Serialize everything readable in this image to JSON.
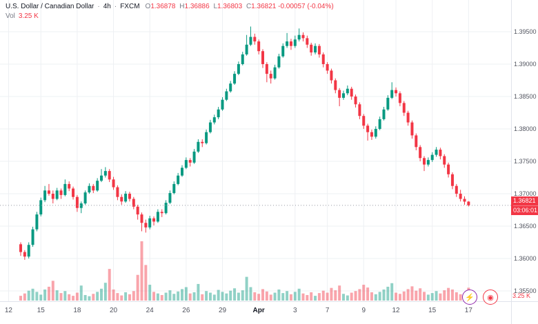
{
  "legend": {
    "symbol": "U.S. Dollar / Canadian Dollar",
    "separator": "·",
    "interval": "4h",
    "exchange": "FXCM",
    "ohlc": {
      "o_label": "O",
      "o": "1.36878",
      "h_label": "H",
      "h": "1.36886",
      "l_label": "L",
      "l": "1.36803",
      "c_label": "C",
      "c": "1.36821",
      "change": "-0.00057 (-0.04%)"
    },
    "volume_label": "Vol",
    "volume_value": "3.25 K"
  },
  "price_axis": {
    "last_price_label": "1.36821",
    "countdown": "03:06:01",
    "volume_axis_label": "3.25 K",
    "ticks": [
      {
        "label": "1.39500",
        "value": 1.395
      },
      {
        "label": "1.39000",
        "value": 1.39
      },
      {
        "label": "1.38500",
        "value": 1.385
      },
      {
        "label": "1.38000",
        "value": 1.38
      },
      {
        "label": "1.37500",
        "value": 1.375
      },
      {
        "label": "1.37000",
        "value": 1.37
      },
      {
        "label": "1.36500",
        "value": 1.365
      },
      {
        "label": "1.36000",
        "value": 1.36
      },
      {
        "label": "1.35500",
        "value": 1.355
      }
    ]
  },
  "time_axis": {
    "ticks": [
      {
        "label": "12",
        "i": -3
      },
      {
        "label": "15",
        "i": 5
      },
      {
        "label": "18",
        "i": 14
      },
      {
        "label": "20",
        "i": 23
      },
      {
        "label": "24",
        "i": 32
      },
      {
        "label": "26",
        "i": 41
      },
      {
        "label": "29",
        "i": 50
      },
      {
        "label": "Apr",
        "i": 59,
        "major": true
      },
      {
        "label": "3",
        "i": 68
      },
      {
        "label": "7",
        "i": 76
      },
      {
        "label": "9",
        "i": 85
      },
      {
        "label": "12",
        "i": 93
      },
      {
        "label": "15",
        "i": 102
      },
      {
        "label": "17",
        "i": 111
      }
    ]
  },
  "buttons": {
    "lightning_glyph": "⚡",
    "record_glyph": "◉"
  },
  "chart_data": {
    "type": "candlestick",
    "title": "U.S. Dollar / Canadian Dollar · 4h · FXCM",
    "symbol": "USD/CAD",
    "interval": "4h",
    "exchange": "FXCM",
    "up_color": "#089981",
    "down_color": "#f23645",
    "volume_up_color": "rgba(8,153,129,0.45)",
    "volume_down_color": "rgba(242,54,69,0.45)",
    "grid": true,
    "legend_position": "top-left",
    "price_range": [
      1.355,
      1.3975
    ],
    "volume_unit": "K",
    "current": {
      "open": 1.36878,
      "high": 1.36886,
      "low": 1.36803,
      "close": 1.36821,
      "change": -0.00057,
      "change_pct": -0.04,
      "volume_k": 3.25,
      "countdown": "03:06:01"
    },
    "candles": [
      [
        1.3622,
        1.3625,
        1.3604,
        1.361,
        1.2
      ],
      [
        1.361,
        1.3613,
        1.3598,
        1.3603,
        1.8
      ],
      [
        1.3603,
        1.3625,
        1.36,
        1.3621,
        2.5
      ],
      [
        1.3621,
        1.3649,
        1.3618,
        1.3645,
        3.0
      ],
      [
        1.3645,
        1.3672,
        1.3642,
        1.3668,
        2.2
      ],
      [
        1.3668,
        1.3694,
        1.3665,
        1.369,
        1.5
      ],
      [
        1.369,
        1.3712,
        1.3687,
        1.3705,
        2.8
      ],
      [
        1.3705,
        1.3715,
        1.3697,
        1.37,
        3.5
      ],
      [
        1.37,
        1.3705,
        1.3685,
        1.3692,
        5.0
      ],
      [
        1.3692,
        1.3709,
        1.369,
        1.3705,
        2.6
      ],
      [
        1.3705,
        1.3708,
        1.3692,
        1.3698,
        1.9
      ],
      [
        1.3698,
        1.3722,
        1.3696,
        1.3715,
        2.4
      ],
      [
        1.3715,
        1.3719,
        1.3704,
        1.3708,
        1.6
      ],
      [
        1.3708,
        1.3711,
        1.3691,
        1.3695,
        1.2
      ],
      [
        1.3695,
        1.3698,
        1.3672,
        1.3678,
        2.0
      ],
      [
        1.3678,
        1.3688,
        1.367,
        1.3685,
        3.8
      ],
      [
        1.3685,
        1.3705,
        1.3683,
        1.3702,
        1.4
      ],
      [
        1.3702,
        1.3716,
        1.37,
        1.3712,
        1.1
      ],
      [
        1.3712,
        1.3715,
        1.3701,
        1.3705,
        1.7
      ],
      [
        1.3705,
        1.3724,
        1.3703,
        1.372,
        2.2
      ],
      [
        1.372,
        1.3738,
        1.3718,
        1.3728,
        3.0
      ],
      [
        1.3728,
        1.3741,
        1.3725,
        1.3735,
        4.5
      ],
      [
        1.3735,
        1.3738,
        1.3718,
        1.3722,
        8.0
      ],
      [
        1.3722,
        1.3726,
        1.3706,
        1.371,
        2.8
      ],
      [
        1.371,
        1.3713,
        1.369,
        1.3695,
        1.9
      ],
      [
        1.3695,
        1.3699,
        1.3683,
        1.3688,
        1.3
      ],
      [
        1.3688,
        1.3704,
        1.3686,
        1.37,
        2.1
      ],
      [
        1.37,
        1.3703,
        1.3688,
        1.3692,
        1.6
      ],
      [
        1.3692,
        1.3695,
        1.3676,
        1.368,
        2.4
      ],
      [
        1.368,
        1.3683,
        1.366,
        1.3668,
        6.5
      ],
      [
        1.3668,
        1.3671,
        1.3642,
        1.3655,
        15.0
      ],
      [
        1.3655,
        1.366,
        1.364,
        1.3648,
        9.0
      ],
      [
        1.3648,
        1.3666,
        1.3645,
        1.3662,
        4.0
      ],
      [
        1.3662,
        1.3665,
        1.3651,
        1.3657,
        2.2
      ],
      [
        1.3657,
        1.3676,
        1.3655,
        1.3672,
        1.8
      ],
      [
        1.3672,
        1.3676,
        1.3664,
        1.367,
        1.4
      ],
      [
        1.367,
        1.369,
        1.3668,
        1.3686,
        2.0
      ],
      [
        1.3686,
        1.3705,
        1.3684,
        1.3701,
        2.6
      ],
      [
        1.3701,
        1.3719,
        1.3699,
        1.3715,
        1.7
      ],
      [
        1.3715,
        1.3732,
        1.3713,
        1.3728,
        2.3
      ],
      [
        1.3728,
        1.3744,
        1.3726,
        1.374,
        2.9
      ],
      [
        1.374,
        1.3756,
        1.3738,
        1.3752,
        3.4
      ],
      [
        1.3752,
        1.3755,
        1.3742,
        1.3748,
        1.8
      ],
      [
        1.3748,
        1.3769,
        1.3746,
        1.3765,
        2.1
      ],
      [
        1.3765,
        1.3784,
        1.3763,
        1.378,
        4.2
      ],
      [
        1.378,
        1.3784,
        1.3772,
        1.3778,
        1.6
      ],
      [
        1.3778,
        1.3799,
        1.3776,
        1.3795,
        2.4
      ],
      [
        1.3795,
        1.3814,
        1.3793,
        1.381,
        2.0
      ],
      [
        1.381,
        1.3822,
        1.3807,
        1.3818,
        1.5
      ],
      [
        1.3818,
        1.3834,
        1.3815,
        1.383,
        2.7
      ],
      [
        1.383,
        1.3849,
        1.3828,
        1.3845,
        2.2
      ],
      [
        1.3845,
        1.3862,
        1.3843,
        1.3858,
        1.8
      ],
      [
        1.3858,
        1.3874,
        1.3856,
        1.387,
        2.5
      ],
      [
        1.387,
        1.3889,
        1.3868,
        1.3885,
        3.1
      ],
      [
        1.3885,
        1.3904,
        1.3883,
        1.39,
        2.0
      ],
      [
        1.39,
        1.3919,
        1.3898,
        1.3915,
        2.6
      ],
      [
        1.3915,
        1.3945,
        1.3913,
        1.393,
        6.0
      ],
      [
        1.393,
        1.3958,
        1.3928,
        1.3942,
        3.4
      ],
      [
        1.3942,
        1.3947,
        1.393,
        1.3935,
        2.1
      ],
      [
        1.3935,
        1.3938,
        1.3915,
        1.392,
        1.7
      ],
      [
        1.392,
        1.3923,
        1.3894,
        1.39,
        2.9
      ],
      [
        1.39,
        1.3903,
        1.3872,
        1.3885,
        2.3
      ],
      [
        1.3885,
        1.389,
        1.387,
        1.3878,
        1.5
      ],
      [
        1.3878,
        1.3899,
        1.3876,
        1.3895,
        2.0
      ],
      [
        1.3895,
        1.3916,
        1.3893,
        1.3912,
        2.8
      ],
      [
        1.3912,
        1.3932,
        1.391,
        1.3928,
        1.9
      ],
      [
        1.3928,
        1.3948,
        1.3925,
        1.3935,
        2.4
      ],
      [
        1.3935,
        1.3939,
        1.3922,
        1.3928,
        1.6
      ],
      [
        1.3928,
        1.3944,
        1.3925,
        1.3938,
        2.2
      ],
      [
        1.3938,
        1.3955,
        1.3935,
        1.3945,
        3.0
      ],
      [
        1.3945,
        1.3949,
        1.3935,
        1.394,
        1.8
      ],
      [
        1.394,
        1.3944,
        1.3925,
        1.393,
        1.4
      ],
      [
        1.393,
        1.3933,
        1.3913,
        1.3918,
        2.1
      ],
      [
        1.3918,
        1.3932,
        1.3915,
        1.3928,
        1.2
      ],
      [
        1.3928,
        1.3931,
        1.391,
        1.3915,
        1.9
      ],
      [
        1.3915,
        1.3918,
        1.3895,
        1.39,
        2.5
      ],
      [
        1.39,
        1.3903,
        1.3885,
        1.389,
        2.0
      ],
      [
        1.389,
        1.3893,
        1.387,
        1.3875,
        3.2
      ],
      [
        1.3875,
        1.3878,
        1.3855,
        1.386,
        2.6
      ],
      [
        1.386,
        1.3863,
        1.3835,
        1.3848,
        3.8
      ],
      [
        1.3848,
        1.3859,
        1.3845,
        1.3855,
        1.7
      ],
      [
        1.3855,
        1.3867,
        1.3852,
        1.3862,
        1.3
      ],
      [
        1.3862,
        1.3865,
        1.3845,
        1.385,
        2.0
      ],
      [
        1.385,
        1.3853,
        1.3833,
        1.3838,
        2.4
      ],
      [
        1.3838,
        1.3841,
        1.3815,
        1.382,
        2.9
      ],
      [
        1.382,
        1.3823,
        1.38,
        1.3805,
        4.0
      ],
      [
        1.3805,
        1.3808,
        1.3782,
        1.3795,
        3.3
      ],
      [
        1.3795,
        1.3799,
        1.3783,
        1.3788,
        2.1
      ],
      [
        1.3788,
        1.3804,
        1.3785,
        1.38,
        1.6
      ],
      [
        1.38,
        1.3819,
        1.3798,
        1.3815,
        2.2
      ],
      [
        1.3815,
        1.3834,
        1.3813,
        1.383,
        2.8
      ],
      [
        1.383,
        1.3852,
        1.3828,
        1.3848,
        3.5
      ],
      [
        1.3848,
        1.3872,
        1.3846,
        1.386,
        4.4
      ],
      [
        1.386,
        1.3864,
        1.385,
        1.3855,
        2.0
      ],
      [
        1.3855,
        1.3858,
        1.3835,
        1.384,
        1.7
      ],
      [
        1.384,
        1.3843,
        1.382,
        1.3825,
        2.3
      ],
      [
        1.3825,
        1.3828,
        1.3805,
        1.381,
        2.9
      ],
      [
        1.381,
        1.3813,
        1.3785,
        1.379,
        3.6
      ],
      [
        1.379,
        1.3793,
        1.3767,
        1.3772,
        2.5
      ],
      [
        1.3772,
        1.3775,
        1.375,
        1.3755,
        3.1
      ],
      [
        1.3755,
        1.3758,
        1.3735,
        1.3745,
        2.2
      ],
      [
        1.3745,
        1.3756,
        1.3742,
        1.3752,
        1.5
      ],
      [
        1.3752,
        1.3764,
        1.3749,
        1.376,
        1.9
      ],
      [
        1.376,
        1.3772,
        1.3757,
        1.3768,
        2.4
      ],
      [
        1.3768,
        1.3771,
        1.3753,
        1.3758,
        1.8
      ],
      [
        1.3758,
        1.3761,
        1.374,
        1.3745,
        2.6
      ],
      [
        1.3745,
        1.3748,
        1.3725,
        1.373,
        3.2
      ],
      [
        1.373,
        1.3733,
        1.3707,
        1.3712,
        2.8
      ],
      [
        1.3712,
        1.3715,
        1.3695,
        1.37,
        2.1
      ],
      [
        1.37,
        1.3706,
        1.3688,
        1.3692,
        1.6
      ],
      [
        1.3692,
        1.3696,
        1.3683,
        1.36878,
        1.9
      ],
      [
        1.36878,
        1.36886,
        1.36803,
        1.36821,
        3.25
      ]
    ]
  }
}
